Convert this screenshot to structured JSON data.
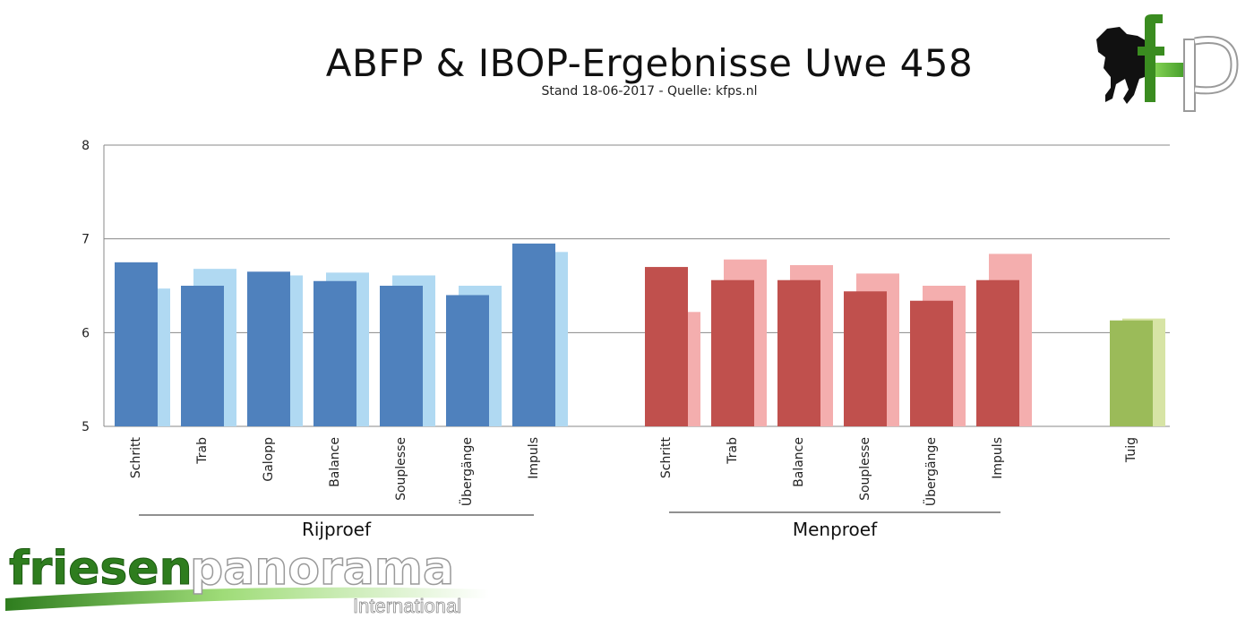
{
  "chart_data": {
    "type": "bar",
    "title": "ABFP & IBOP-Ergebnisse Uwe 458",
    "subtitle": "Stand 18-06-2017 - Quelle: kfps.nl",
    "ylim": [
      5,
      8
    ],
    "yticks": [
      "5",
      "6",
      "7",
      "8"
    ],
    "grid": true,
    "groups": [
      {
        "label": "Rijproef",
        "categories": [
          "Schritt",
          "Trab",
          "Galopp",
          "Balance",
          "Souplesse",
          "Übergänge",
          "Impuls"
        ],
        "primary": [
          6.75,
          6.5,
          6.65,
          6.55,
          6.5,
          6.4,
          6.95
        ],
        "secondary": [
          6.47,
          6.68,
          6.61,
          6.64,
          6.61,
          6.5,
          6.86
        ],
        "colors": {
          "primary": "#4f81bd",
          "secondary": "#b0d9f2"
        }
      },
      {
        "label": "Menproef",
        "categories": [
          "Schritt",
          "Trab",
          "Balance",
          "Souplesse",
          "Übergänge",
          "Impuls"
        ],
        "primary": [
          6.7,
          6.56,
          6.56,
          6.44,
          6.34,
          6.56
        ],
        "secondary": [
          6.22,
          6.78,
          6.72,
          6.63,
          6.5,
          6.84
        ],
        "colors": {
          "primary": "#c0504d",
          "secondary": "#f4aeae"
        }
      },
      {
        "label": "",
        "categories": [
          "Tuig"
        ],
        "primary": [
          6.13
        ],
        "secondary": [
          6.15
        ],
        "colors": {
          "primary": "#9bbb59",
          "secondary": "#d7e4a5"
        }
      }
    ]
  },
  "logos": {
    "kfp": {
      "text": "fp",
      "colors": {
        "green": "#3a8c20",
        "black": "#111111"
      }
    },
    "brand": {
      "word1": "friesen",
      "word2": "panorama",
      "word3": "International",
      "colors": {
        "green": "#2e7d1e",
        "white": "#ffffff",
        "gray": "#9a9a9a"
      }
    }
  }
}
